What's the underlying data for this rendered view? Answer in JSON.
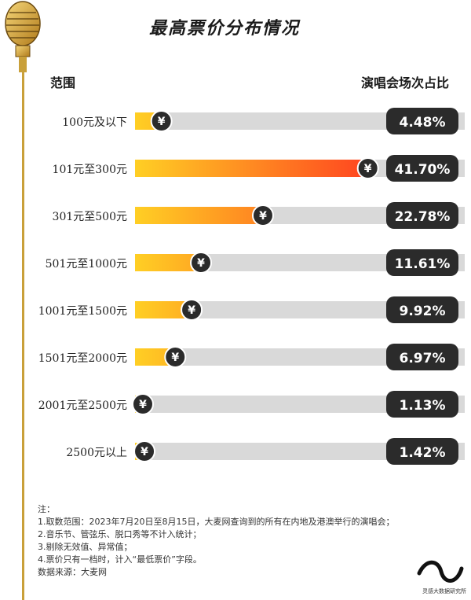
{
  "title": "最高票价分布情况",
  "header": {
    "left": "范围",
    "right": "演唱会场次占比"
  },
  "chart_data": {
    "type": "bar",
    "orientation": "horizontal",
    "categories": [
      "100元及以下",
      "101元至300元",
      "301元至500元",
      "501元至1000元",
      "1001元至1500元",
      "1501元至2000元",
      "2001元至2500元",
      "2500元以上"
    ],
    "values": [
      4.48,
      41.7,
      22.78,
      11.61,
      9.92,
      6.97,
      1.13,
      1.42
    ],
    "value_labels": [
      "4.48%",
      "41.70%",
      "22.78%",
      "11.61%",
      "9.92%",
      "6.97%",
      "1.13%",
      "1.42%"
    ],
    "unit": "%",
    "xlim": [
      0,
      45
    ],
    "marker_symbol": "¥",
    "colors": {
      "bar_start": "#ffcf24",
      "bar_end": "#ff3b1f",
      "track": "#d9d9d9",
      "badge": "#2b2b2b",
      "marker": "#2b2b2b"
    }
  },
  "notes": {
    "lines": [
      "注：",
      "1.取数范围：2023年7月20日至8月15日，大麦网查询到的所有在内地及港澳举行的演唱会；",
      "2.音乐节、管弦乐、脱口秀等不计入统计；",
      "3.剔除无效值、异常值；",
      "4.票价只有一档时，计入“最低票价”字段。",
      "数据来源：大麦网"
    ]
  },
  "brand": {
    "text": "灵感大数据研究所"
  }
}
